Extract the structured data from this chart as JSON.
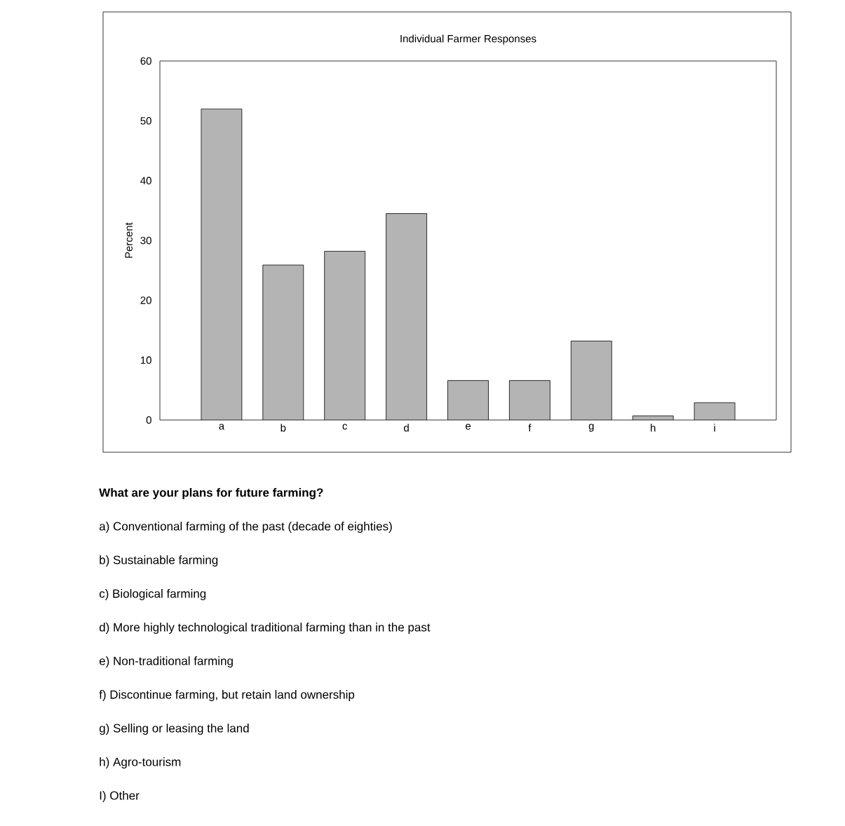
{
  "chart_data": {
    "type": "bar",
    "title": "Individual Farmer Responses",
    "ylabel": "Percent",
    "categories": [
      "a",
      "b",
      "c",
      "d",
      "e",
      "f",
      "g",
      "h",
      "i"
    ],
    "values": [
      52.0,
      25.9,
      28.2,
      34.5,
      6.6,
      6.6,
      13.2,
      0.7,
      2.9
    ],
    "color": "#b4b4b4",
    "ylim": [
      0,
      60
    ],
    "yticks": [
      0,
      10,
      20,
      30,
      40,
      50,
      60
    ],
    "grid": false,
    "annotations": [
      "**What are your plans for future farming?**",
      "a) Conventional farming of the past (decade of eighties)",
      "b) Sustainable farming",
      "c) Biological farming",
      "d) More highly technological traditional farming than in the past",
      "e) Non-traditional farming",
      "f) Discontinue farming, but retain land ownership",
      "g) Selling or leasing the land",
      "h) Agro-tourism",
      "I) Other"
    ]
  }
}
